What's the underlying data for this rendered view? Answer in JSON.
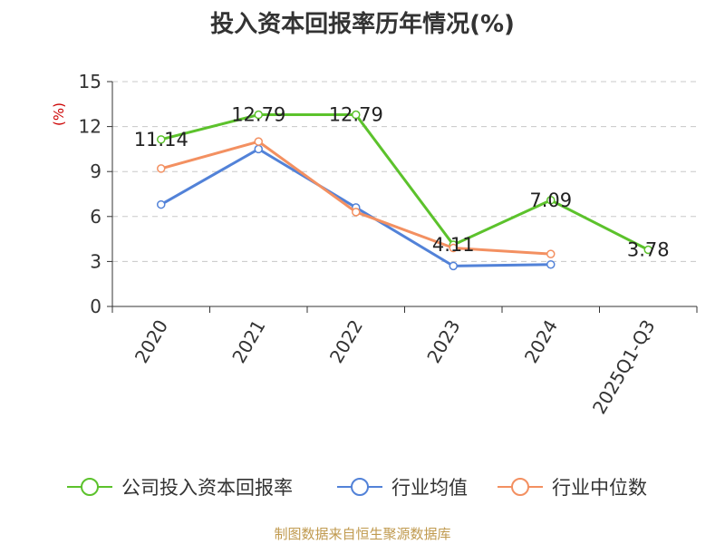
{
  "chart_data": {
    "type": "line",
    "title": "投入资本回报率历年情况(%)",
    "ylabel": "(%)",
    "xlabel": "",
    "categories": [
      "2020",
      "2021",
      "2022",
      "2023",
      "2024",
      "2025Q1-Q3"
    ],
    "ylim": [
      0,
      15
    ],
    "yticks": [
      0,
      3,
      6,
      9,
      12,
      15
    ],
    "grid": true,
    "legend_position": "bottom",
    "series": [
      {
        "name": "公司投入资本回报率",
        "color": "#5cc22c",
        "values": [
          11.14,
          12.79,
          12.79,
          4.11,
          7.09,
          3.78
        ],
        "labels": [
          "11.14",
          "12.79",
          "12.79",
          "4.11",
          "7.09",
          "3.78"
        ]
      },
      {
        "name": "行业均值",
        "color": "#5282d8",
        "values": [
          6.8,
          10.5,
          6.6,
          2.7,
          2.8,
          null
        ]
      },
      {
        "name": "行业中位数",
        "color": "#f39061",
        "values": [
          9.2,
          11.0,
          6.3,
          3.9,
          3.5,
          null
        ]
      }
    ],
    "source": "制图数据来自恒生聚源数据库"
  }
}
